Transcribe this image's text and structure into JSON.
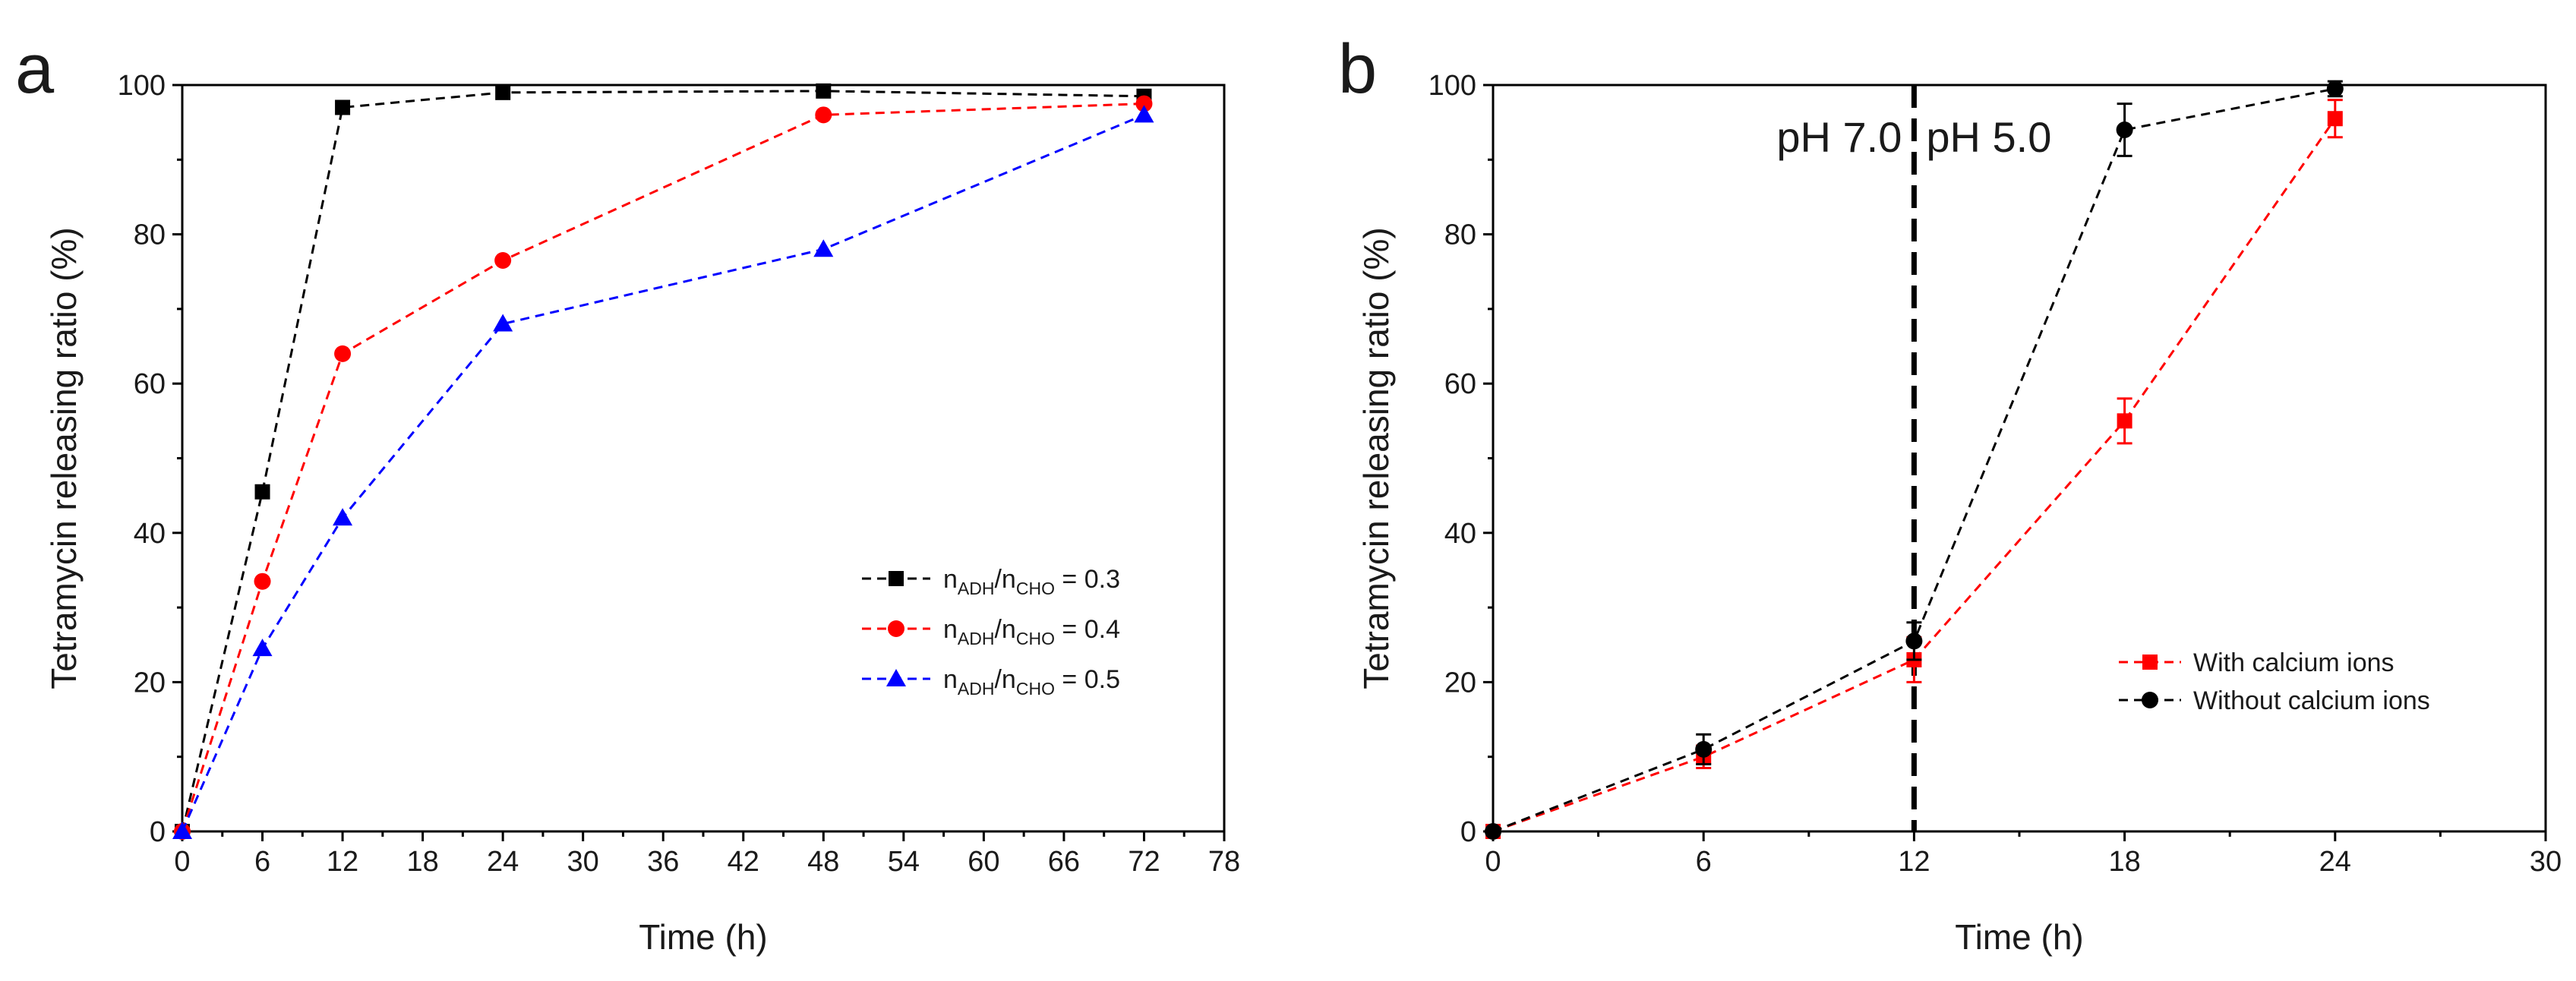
{
  "chart_data": [
    {
      "panel": "a",
      "type": "line",
      "xlabel": "Time (h)",
      "ylabel": "Tetramycin releasing ratio (%)",
      "xlim": [
        0,
        78
      ],
      "ylim": [
        0,
        100
      ],
      "xticks": [
        0,
        6,
        12,
        18,
        24,
        30,
        36,
        42,
        48,
        54,
        60,
        66,
        72,
        78
      ],
      "yticks": [
        0,
        20,
        40,
        60,
        80,
        100
      ],
      "legend_position": "center-right",
      "series": [
        {
          "name": "nADH/nCHO = 0.3",
          "legend_main": "n",
          "legend_sub1": "ADH",
          "legend_mid": "/n",
          "legend_sub2": "CHO",
          "legend_tail": " = 0.3",
          "color": "#000000",
          "marker": "square",
          "x": [
            0,
            6,
            12,
            24,
            48,
            72
          ],
          "values": [
            0,
            45.5,
            97,
            99,
            99.2,
            98.5
          ]
        },
        {
          "name": "nADH/nCHO = 0.4",
          "legend_main": "n",
          "legend_sub1": "ADH",
          "legend_mid": "/n",
          "legend_sub2": "CHO",
          "legend_tail": " = 0.4",
          "color": "#ff0000",
          "marker": "circle",
          "x": [
            0,
            6,
            12,
            24,
            48,
            72
          ],
          "values": [
            0,
            33.5,
            64,
            76.5,
            96,
            97.5
          ]
        },
        {
          "name": "nADH/nCHO = 0.5",
          "legend_main": "n",
          "legend_sub1": "ADH",
          "legend_mid": "/n",
          "legend_sub2": "CHO",
          "legend_tail": " = 0.5",
          "color": "#0000ff",
          "marker": "triangle",
          "x": [
            0,
            6,
            12,
            24,
            48,
            72
          ],
          "values": [
            0,
            24.5,
            42,
            68,
            78,
            96
          ]
        }
      ]
    },
    {
      "panel": "b",
      "type": "line",
      "xlabel": "Time (h)",
      "ylabel": "Tetramycin releasing ratio (%)",
      "xlim": [
        0,
        30
      ],
      "ylim": [
        0,
        100
      ],
      "xticks": [
        0,
        6,
        12,
        18,
        24,
        30
      ],
      "yticks": [
        0,
        20,
        40,
        60,
        80,
        100
      ],
      "legend_position": "lower-right",
      "annotations": [
        {
          "text": "pH 7.0",
          "side": "left"
        },
        {
          "text": "pH 5.0",
          "side": "right"
        }
      ],
      "divider_x": 12,
      "series": [
        {
          "name": "With calcium ions",
          "color": "#ff0000",
          "marker": "square",
          "x": [
            0,
            6,
            12,
            18,
            24
          ],
          "values": [
            0,
            10,
            23,
            55,
            95.5
          ],
          "errors": [
            0,
            1.5,
            3,
            3,
            2.5
          ]
        },
        {
          "name": "Without calcium ions",
          "color": "#000000",
          "marker": "circle",
          "x": [
            0,
            6,
            12,
            18,
            24
          ],
          "values": [
            0,
            11,
            25.5,
            94,
            99.5
          ],
          "errors": [
            0,
            2,
            2.5,
            3.5,
            1
          ]
        }
      ]
    }
  ]
}
